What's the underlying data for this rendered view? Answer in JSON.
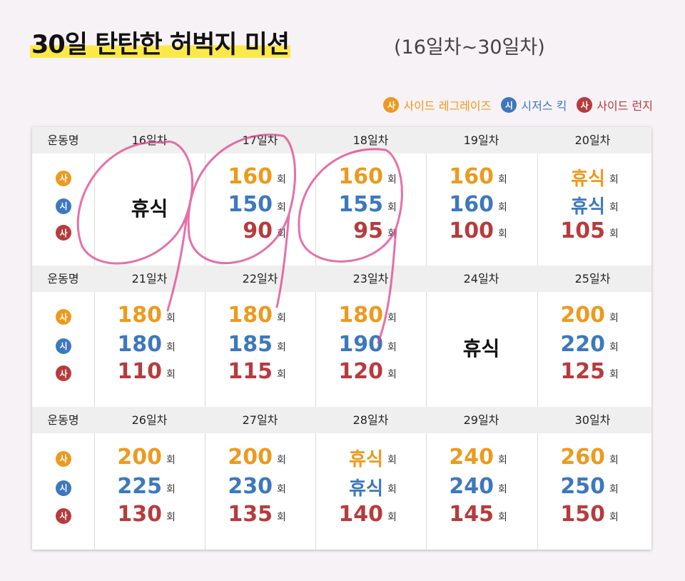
{
  "header": {
    "title": "30일 탄탄한 허벅지 미션",
    "subtitle": "(16일차~30일차)"
  },
  "legend": [
    {
      "icon": "사",
      "name": "사이드 레그레이즈",
      "color": "#ec9a1f"
    },
    {
      "icon": "시",
      "name": "시저스 킥",
      "color": "#3d78bd"
    },
    {
      "icon": "사",
      "name": "사이드 런지",
      "color": "#b73b3d"
    }
  ],
  "unit": "회",
  "table": {
    "blocks": [
      {
        "label": "운동명",
        "days": [
          {
            "day": "16일차",
            "rest": "휴식"
          },
          {
            "day": "17일차",
            "values": [
              "160",
              "150",
              "90"
            ]
          },
          {
            "day": "18일차",
            "values": [
              "160",
              "155",
              "95"
            ]
          },
          {
            "day": "19일차",
            "values": [
              "160",
              "160",
              "100"
            ]
          },
          {
            "day": "20일차",
            "values": [
              "휴식",
              "휴식",
              "105"
            ]
          }
        ]
      },
      {
        "label": "운동명",
        "days": [
          {
            "day": "21일차",
            "values": [
              "180",
              "180",
              "110"
            ]
          },
          {
            "day": "22일차",
            "values": [
              "180",
              "185",
              "115"
            ]
          },
          {
            "day": "23일차",
            "values": [
              "180",
              "190",
              "120"
            ]
          },
          {
            "day": "24일차",
            "rest": "휴식"
          },
          {
            "day": "25일차",
            "values": [
              "200",
              "220",
              "125"
            ]
          }
        ]
      },
      {
        "label": "운동명",
        "days": [
          {
            "day": "26일차",
            "values": [
              "200",
              "225",
              "130"
            ]
          },
          {
            "day": "27일차",
            "values": [
              "200",
              "230",
              "135"
            ]
          },
          {
            "day": "28일차",
            "values": [
              "휴식",
              "휴식",
              "140"
            ]
          },
          {
            "day": "29일차",
            "values": [
              "240",
              "240",
              "145"
            ]
          },
          {
            "day": "30일차",
            "values": [
              "260",
              "250",
              "150"
            ]
          }
        ]
      }
    ]
  }
}
